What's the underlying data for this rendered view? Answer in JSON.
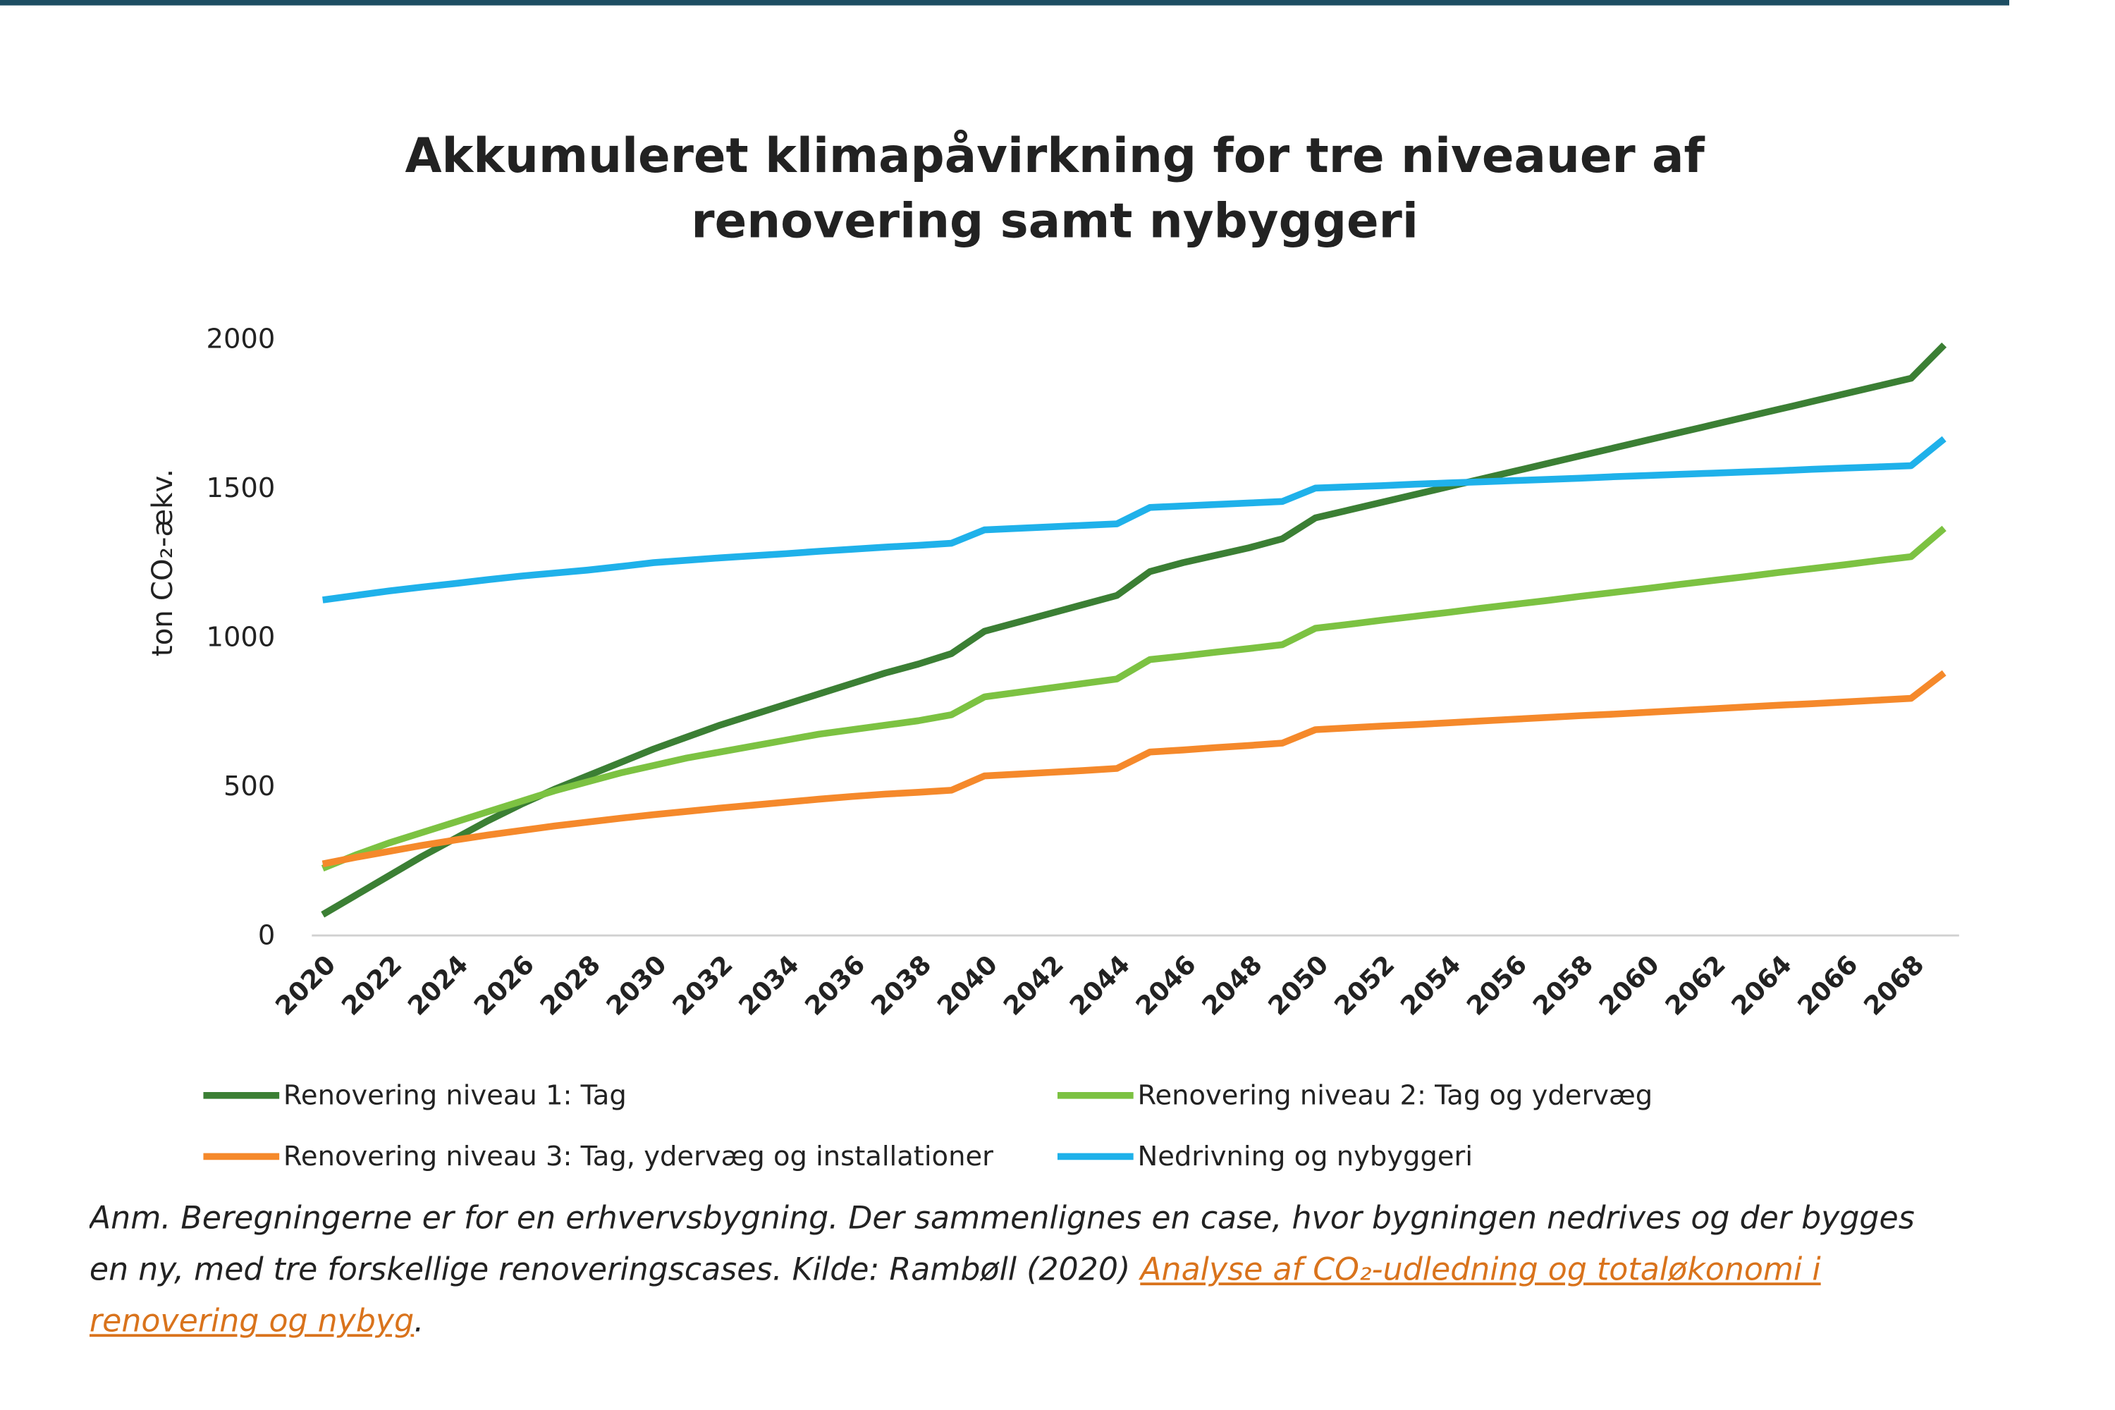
{
  "chart_data": {
    "type": "line",
    "title": [
      "Akkumuleret klimapåvirkning for tre niveauer af",
      "renovering samt nybyggeri"
    ],
    "y_label": "ton CO₂-ækv.",
    "x": [
      2020,
      2021,
      2022,
      2023,
      2024,
      2025,
      2026,
      2027,
      2028,
      2029,
      2030,
      2031,
      2032,
      2033,
      2034,
      2035,
      2036,
      2037,
      2038,
      2039,
      2040,
      2041,
      2042,
      2043,
      2044,
      2045,
      2046,
      2047,
      2048,
      2049,
      2050,
      2051,
      2052,
      2053,
      2054,
      2055,
      2056,
      2057,
      2058,
      2059,
      2060,
      2061,
      2062,
      2063,
      2064,
      2065,
      2066,
      2067,
      2068,
      2069
    ],
    "xlim": [
      2020,
      2069
    ],
    "xticks": [
      2020,
      2022,
      2024,
      2026,
      2028,
      2030,
      2032,
      2034,
      2036,
      2038,
      2040,
      2042,
      2044,
      2046,
      2048,
      2050,
      2052,
      2054,
      2056,
      2058,
      2060,
      2062,
      2064,
      2066,
      2068
    ],
    "ylim": [
      0,
      2000
    ],
    "yticks": [
      0,
      500,
      1000,
      1500,
      2000
    ],
    "grid": false,
    "series": [
      {
        "name": "Renovering niveau 1: Tag",
        "color": "#3b7f34",
        "values": [
          70,
          135,
          200,
          265,
          325,
          385,
          440,
          490,
          535,
          580,
          625,
          665,
          705,
          740,
          775,
          810,
          845,
          880,
          910,
          945,
          1020,
          1050,
          1080,
          1110,
          1140,
          1220,
          1250,
          1275,
          1300,
          1330,
          1400,
          1426,
          1452,
          1478,
          1504,
          1530,
          1556,
          1582,
          1608,
          1634,
          1660,
          1686,
          1712,
          1738,
          1764,
          1790,
          1816,
          1842,
          1868,
          1980
        ]
      },
      {
        "name": "Renovering niveau 2: Tag og ydervæg",
        "color": "#7cc242",
        "values": [
          225,
          270,
          310,
          345,
          380,
          415,
          450,
          485,
          515,
          545,
          570,
          595,
          615,
          635,
          655,
          675,
          690,
          705,
          720,
          740,
          800,
          815,
          830,
          845,
          860,
          925,
          937,
          950,
          962,
          975,
          1030,
          1043,
          1057,
          1070,
          1083,
          1097,
          1110,
          1123,
          1137,
          1150,
          1163,
          1177,
          1190,
          1203,
          1217,
          1230,
          1243,
          1257,
          1270,
          1365
        ]
      },
      {
        "name": "Renovering niveau 3: Tag, ydervæg og installationer",
        "color": "#f5892b",
        "values": [
          240,
          262,
          282,
          302,
          320,
          337,
          352,
          367,
          380,
          393,
          405,
          416,
          427,
          437,
          447,
          457,
          466,
          474,
          480,
          487,
          535,
          541,
          547,
          553,
          560,
          615,
          622,
          630,
          637,
          645,
          690,
          696,
          702,
          707,
          713,
          719,
          725,
          731,
          737,
          742,
          748,
          754,
          760,
          766,
          772,
          777,
          783,
          789,
          795,
          880
        ]
      },
      {
        "name": "Nedrivning og nybyggeri",
        "color": "#1fb1ea",
        "values": [
          1125,
          1140,
          1155,
          1168,
          1180,
          1193,
          1205,
          1215,
          1225,
          1237,
          1250,
          1258,
          1266,
          1273,
          1280,
          1288,
          1295,
          1302,
          1308,
          1315,
          1360,
          1365,
          1370,
          1375,
          1380,
          1435,
          1440,
          1445,
          1450,
          1455,
          1500,
          1504,
          1508,
          1513,
          1517,
          1521,
          1525,
          1529,
          1533,
          1538,
          1542,
          1546,
          1550,
          1554,
          1558,
          1563,
          1567,
          1571,
          1575,
          1665
        ]
      }
    ]
  },
  "note": {
    "text": "Anm. Beregningerne er for en erhvervsbygning. Der sammenlignes en case, hvor bygningen nedrives og der bygges en ny, med tre forskellige renoveringscases.  Kilde: Rambøll (2020) ",
    "link": "Analyse af CO₂-udledning og totaløkonomi i renovering og nybyg",
    "end": "."
  }
}
